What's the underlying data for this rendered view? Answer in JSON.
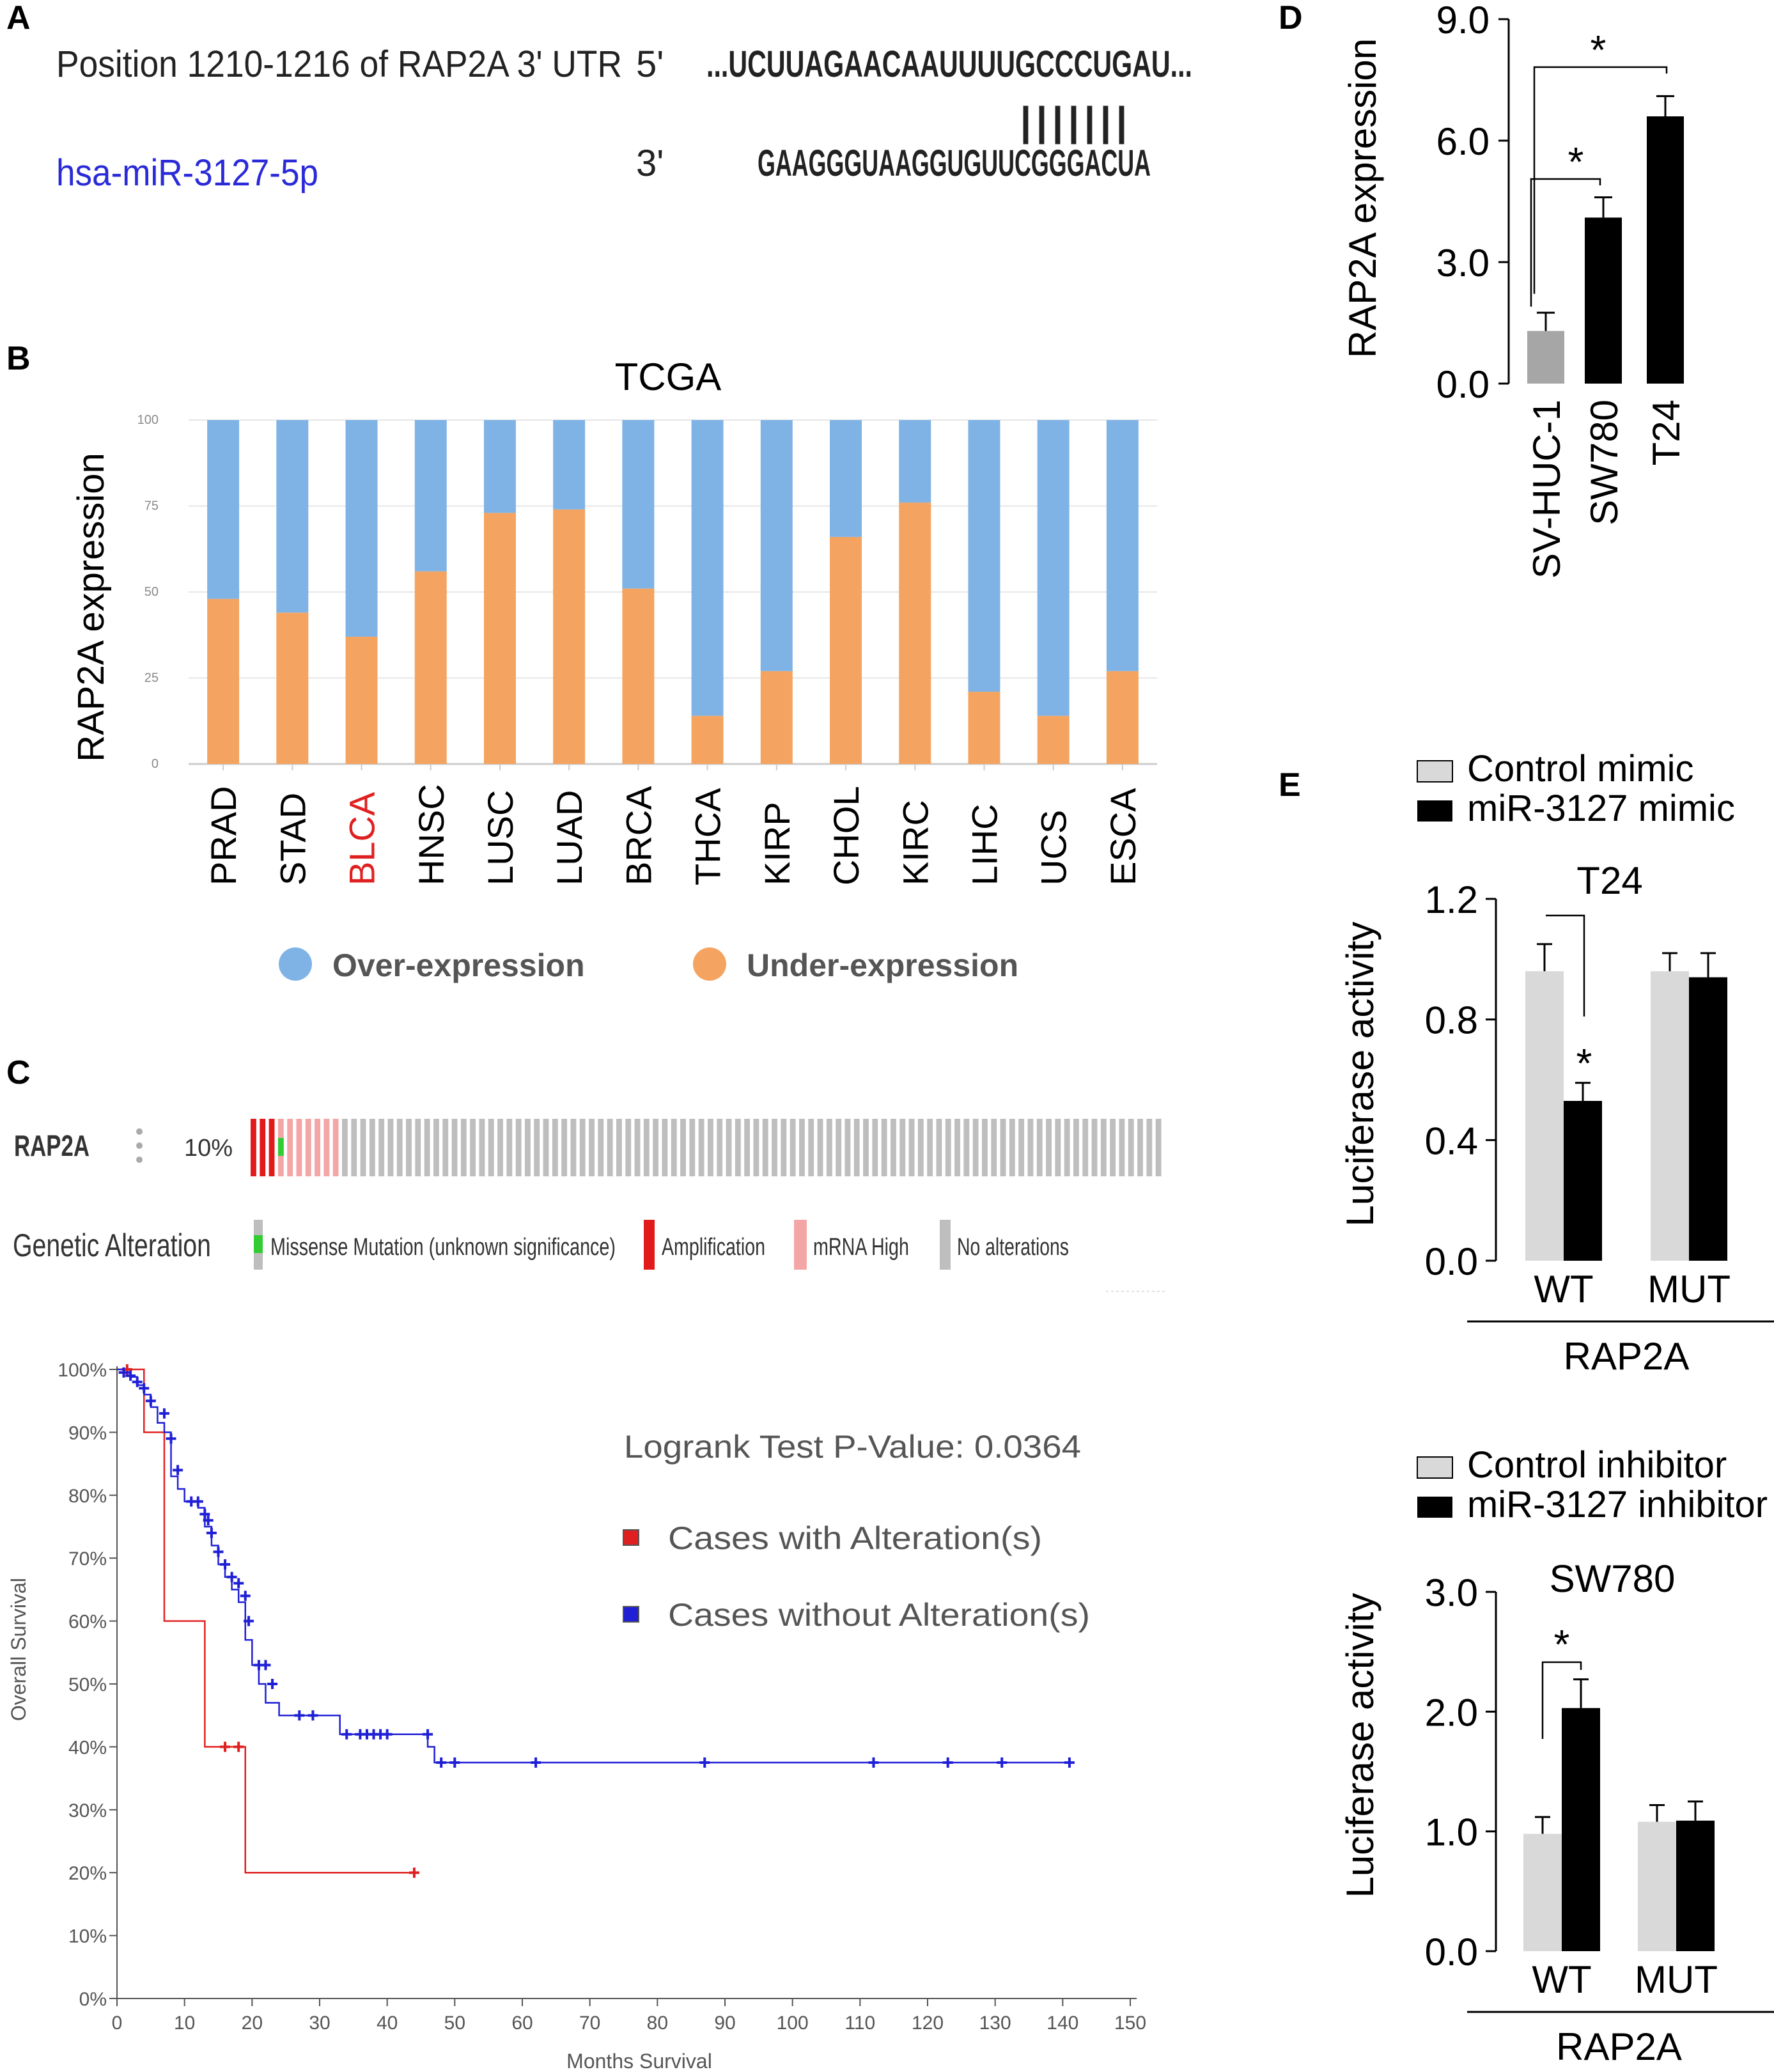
{
  "panel_letters": {
    "a": "A",
    "b": "B",
    "c": "C",
    "d": "D",
    "e": "E"
  },
  "panel_a": {
    "utr_label": "Position 1210-1216 of RAP2A 3' UTR",
    "mirna_label": "hsa-miR-3127-5p",
    "five_prime": "5'",
    "three_prime": "3'",
    "top_sequence": "...UCUUAGAACAAUUUUGCCCUGAU...",
    "bottom_sequence": "GAAGGGUAAGGUGUUCGGGACUA",
    "pairing_bars": "|||||||",
    "colors": {
      "mirna": "#2a2ad8",
      "text": "#222222"
    }
  },
  "chart_data": [
    {
      "id": "B",
      "type": "bar",
      "stacked": true,
      "title": "TCGA",
      "ylabel": "RAP2A expression",
      "ylim": [
        0,
        100
      ],
      "yticks": [
        "0",
        "25",
        "50",
        "75",
        "100"
      ],
      "categories": [
        "PRAD",
        "STAD",
        "BLCA",
        "HNSC",
        "LUSC",
        "LUAD",
        "BRCA",
        "THCA",
        "KIRP",
        "CHOL",
        "KIRC",
        "LIHC",
        "UCS",
        "ESCA"
      ],
      "highlight_category": "BLCA",
      "highlight_color": "#e02020",
      "series": [
        {
          "name": "Under-expression",
          "color": "#f4a460",
          "values": [
            48,
            44,
            37,
            56,
            73,
            74,
            51,
            14,
            27,
            66,
            76,
            21,
            14,
            27
          ]
        },
        {
          "name": "Over-expression",
          "color": "#7fb3e6",
          "values": [
            52,
            56,
            63,
            44,
            27,
            26,
            49,
            86,
            73,
            34,
            24,
            79,
            86,
            73
          ]
        }
      ],
      "legend": [
        "Over-expression",
        "Under-expression"
      ],
      "legend_position": "bottom"
    },
    {
      "id": "C-oncoprint",
      "type": "oncoprint",
      "gene": "RAP2A",
      "percent": "10%",
      "samples_total": 100,
      "alterations": {
        "amplification": 3,
        "missense": 1,
        "mrna_high": 10
      },
      "legend_title": "Genetic Alteration",
      "legend": [
        {
          "name": "Missense Mutation (unknown significance)",
          "color": "#33cc33"
        },
        {
          "name": "Amplification",
          "color": "#e31a1c"
        },
        {
          "name": "mRNA High",
          "color": "#f4a6a6"
        },
        {
          "name": "No alterations",
          "color": "#bebebe"
        }
      ]
    },
    {
      "id": "C-km",
      "type": "line",
      "xlabel": "Months Survival",
      "ylabel": "Overall Survival",
      "xlim": [
        0,
        150
      ],
      "ylim": [
        0,
        100
      ],
      "xticks": [
        "0",
        "10",
        "20",
        "30",
        "40",
        "50",
        "60",
        "70",
        "80",
        "90",
        "100",
        "110",
        "120",
        "130",
        "140",
        "150"
      ],
      "yticks": [
        "0%",
        "10%",
        "20%",
        "30%",
        "40%",
        "50%",
        "60%",
        "70%",
        "80%",
        "90%",
        "100%"
      ],
      "annotation": "Logrank Test P-Value: 0.0364",
      "series": [
        {
          "name": "Cases with Alteration(s)",
          "color": "#e02020",
          "x": [
            0,
            4,
            4,
            7,
            7,
            13,
            13,
            19,
            19,
            44
          ],
          "y": [
            100,
            100,
            90,
            90,
            60,
            60,
            40,
            40,
            20,
            20
          ],
          "censored": [
            [
              1.5,
              100
            ],
            [
              16,
              40
            ],
            [
              18,
              40
            ],
            [
              44,
              20
            ]
          ]
        },
        {
          "name": "Cases without Alteration(s)",
          "color": "#1f1fd6",
          "x": [
            0,
            1,
            1,
            2,
            2,
            3,
            3,
            4,
            4,
            5,
            5,
            6,
            6,
            7,
            7,
            8,
            8,
            9,
            9,
            10,
            10,
            12,
            12,
            13,
            13,
            14,
            14,
            15,
            15,
            16,
            16,
            17,
            17,
            18,
            18,
            19,
            19,
            20,
            20,
            21,
            21,
            22,
            22,
            24,
            24,
            28,
            28,
            33,
            33,
            46,
            46,
            47,
            47,
            141
          ],
          "y": [
            100,
            100,
            99.5,
            99.5,
            98.8,
            98.8,
            97.5,
            97.5,
            96,
            96,
            94,
            94,
            91.5,
            91.5,
            90,
            90,
            83,
            83,
            81,
            81,
            79,
            79,
            78,
            78,
            75,
            75,
            72,
            72,
            69,
            69,
            67,
            67,
            65,
            65,
            63,
            63,
            57,
            57,
            53,
            53,
            50,
            50,
            47,
            47,
            45,
            45,
            45,
            45,
            42,
            42,
            40,
            40,
            37.5,
            37.5
          ],
          "censored": [
            [
              1,
              99.5
            ],
            [
              2,
              99
            ],
            [
              3,
              98
            ],
            [
              4,
              97
            ],
            [
              5,
              95
            ],
            [
              7,
              93
            ],
            [
              8,
              89
            ],
            [
              9,
              84
            ],
            [
              11,
              79
            ],
            [
              12,
              79
            ],
            [
              13,
              77
            ],
            [
              13.5,
              76
            ],
            [
              14,
              74
            ],
            [
              15,
              71
            ],
            [
              16,
              69
            ],
            [
              17,
              67
            ],
            [
              18,
              66
            ],
            [
              19,
              64
            ],
            [
              19.5,
              60
            ],
            [
              21,
              53
            ],
            [
              22,
              53
            ],
            [
              23,
              50
            ],
            [
              27,
              45
            ],
            [
              29,
              45
            ],
            [
              34,
              42
            ],
            [
              36,
              42
            ],
            [
              37,
              42
            ],
            [
              38,
              42
            ],
            [
              39,
              42
            ],
            [
              40,
              42
            ],
            [
              46,
              42
            ],
            [
              48,
              37.5
            ],
            [
              50,
              37.5
            ],
            [
              62,
              37.5
            ],
            [
              87,
              37.5
            ],
            [
              112,
              37.5
            ],
            [
              123,
              37.5
            ],
            [
              131,
              37.5
            ],
            [
              141,
              37.5
            ]
          ]
        }
      ]
    },
    {
      "id": "D",
      "type": "bar",
      "ylabel": "RAP2A expression",
      "ylim": [
        0,
        9
      ],
      "yticks": [
        "0.0",
        "3.0",
        "6.0",
        "9.0"
      ],
      "categories": [
        "SV-HUC-1",
        "SW780",
        "T24"
      ],
      "values": [
        1.3,
        4.1,
        6.6
      ],
      "errors": [
        0.45,
        0.5,
        0.5
      ],
      "colors": [
        "#a6a6a6",
        "#000000",
        "#000000"
      ],
      "significance": [
        {
          "from": 0,
          "to": 1,
          "label": "*"
        },
        {
          "from": 0,
          "to": 2,
          "label": "*"
        }
      ]
    },
    {
      "id": "E-top",
      "type": "bar",
      "title": "T24",
      "ylabel": "Luciferase activity",
      "ylim": [
        0,
        1.2
      ],
      "yticks": [
        "0.0",
        "0.4",
        "0.8",
        "1.2"
      ],
      "categories": [
        "WT",
        "MUT"
      ],
      "group_label": "RAP2A",
      "series": [
        {
          "name": "Control mimic",
          "color": "#d9d9d9",
          "values": [
            0.96,
            0.96
          ],
          "errors": [
            0.09,
            0.06
          ]
        },
        {
          "name": "miR-3127 mimic",
          "color": "#000000",
          "values": [
            0.53,
            0.94
          ],
          "errors": [
            0.06,
            0.08
          ]
        }
      ],
      "significance": [
        {
          "category": 0,
          "label": "*"
        }
      ]
    },
    {
      "id": "E-bottom",
      "type": "bar",
      "title": "SW780",
      "ylabel": "Luciferase activity",
      "ylim": [
        0,
        3.0
      ],
      "yticks": [
        "0.0",
        "1.0",
        "2.0",
        "3.0"
      ],
      "categories": [
        "WT",
        "MUT"
      ],
      "group_label": "RAP2A",
      "series": [
        {
          "name": "Control inhibitor",
          "color": "#d9d9d9",
          "values": [
            0.98,
            1.08
          ],
          "errors": [
            0.14,
            0.14
          ]
        },
        {
          "name": "miR-3127 inhibitor",
          "color": "#000000",
          "values": [
            2.03,
            1.09
          ],
          "errors": [
            0.24,
            0.16
          ]
        }
      ],
      "significance": [
        {
          "category": 0,
          "label": "*"
        }
      ]
    }
  ]
}
